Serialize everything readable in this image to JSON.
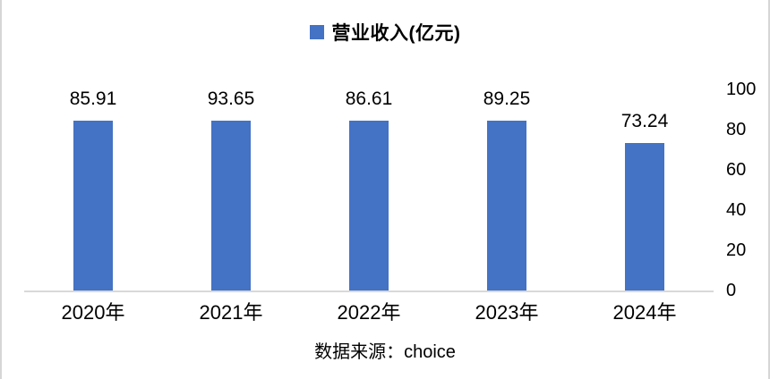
{
  "chart_data": {
    "type": "bar",
    "categories": [
      "2020年",
      "2021年",
      "2022年",
      "2023年",
      "2024年"
    ],
    "series": [
      {
        "name": "营业收入(亿元)",
        "values": [
          85.91,
          93.65,
          86.61,
          89.25,
          73.24
        ]
      }
    ],
    "value_labels": [
      "85.91",
      "93.65",
      "86.61",
      "89.25",
      "73.24"
    ],
    "title": "",
    "xlabel": "",
    "ylabel": "",
    "ylim": [
      0,
      100
    ],
    "yticks": [
      0,
      20,
      40,
      60,
      80,
      100
    ],
    "yaxis_side": "right",
    "legend_position": "top",
    "grid": false,
    "data_labels": true,
    "source_note": "数据来源：choice",
    "colors": {
      "bar": "#4472C4",
      "axis_line": "#D9D9D9",
      "text": "#000000",
      "frame_border": "#D6D6D6"
    }
  }
}
